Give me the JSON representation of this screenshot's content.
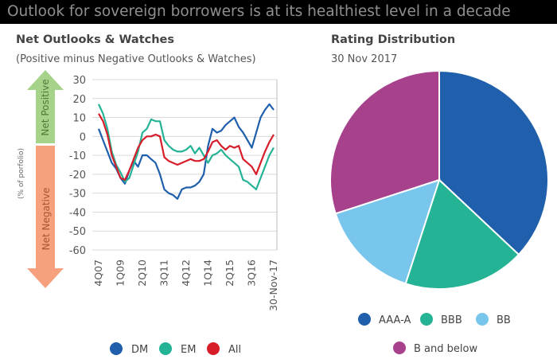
{
  "banner": "Outlook for sovereign borrowers is at its healthiest level in a decade",
  "colors": {
    "dm": "#1f5fab",
    "em": "#25b396",
    "all": "#d71c2a",
    "aaa_a": "#1f5fab",
    "bbb": "#25b396",
    "bb": "#79c6ec",
    "b_below": "#a8418c",
    "up_arrow": "#a6d38a",
    "down_arrow": "#f6a07e"
  },
  "chart_data": [
    {
      "type": "line",
      "title": "Net Outlooks & Watches",
      "subtitle": "(Positive minus Negative Outlooks & Watches)",
      "ylabel": "(% of porfolio)",
      "ylim": [
        -60,
        30
      ],
      "yticks": [
        "30",
        "20",
        "10",
        "0",
        "-10",
        "-20",
        "-30",
        "-40",
        "-50",
        "-60"
      ],
      "xlim": [
        0,
        40
      ],
      "xticks": [
        {
          "label": "4Q07",
          "x": 0
        },
        {
          "label": "1Q09",
          "x": 5
        },
        {
          "label": "2Q10",
          "x": 10
        },
        {
          "label": "3Q11",
          "x": 15
        },
        {
          "label": "4Q12",
          "x": 20
        },
        {
          "label": "1Q14",
          "x": 25
        },
        {
          "label": "2Q15",
          "x": 30
        },
        {
          "label": "3Q16",
          "x": 35
        },
        {
          "label": "30-Nov-17",
          "x": 40
        }
      ],
      "arrows": {
        "positive": "Net Positive",
        "negative": "Net Negative"
      },
      "series": [
        {
          "name": "DM",
          "color_key": "dm",
          "x": [
            0,
            1,
            2,
            3,
            4,
            5,
            6,
            7,
            8,
            9,
            10,
            11,
            12,
            13,
            14,
            15,
            16,
            17,
            18,
            19,
            20,
            21,
            22,
            23,
            24,
            25,
            26,
            27,
            28,
            29,
            30,
            31,
            32,
            33,
            34,
            35,
            36,
            37,
            38,
            39,
            40
          ],
          "values": [
            4,
            -2,
            -8,
            -14,
            -17,
            -22,
            -25,
            -18,
            -13,
            -16,
            -10,
            -10,
            -12,
            -14,
            -20,
            -28,
            -30,
            -31,
            -33,
            -28,
            -27,
            -27,
            -26,
            -24,
            -20,
            -5,
            4,
            2,
            3,
            6,
            8,
            10,
            5,
            2,
            -2,
            -6,
            2,
            10,
            14,
            17,
            14
          ]
        },
        {
          "name": "EM",
          "color_key": "em",
          "x": [
            0,
            1,
            2,
            3,
            4,
            5,
            6,
            7,
            8,
            9,
            10,
            11,
            12,
            13,
            14,
            15,
            16,
            17,
            18,
            19,
            20,
            21,
            22,
            23,
            24,
            25,
            26,
            27,
            28,
            29,
            30,
            31,
            32,
            33,
            34,
            35,
            36,
            37,
            38,
            39,
            40
          ],
          "values": [
            17,
            12,
            4,
            -8,
            -15,
            -19,
            -24,
            -22,
            -15,
            -8,
            2,
            4,
            9,
            8,
            8,
            -2,
            -5,
            -7,
            -8,
            -8,
            -7,
            -5,
            -9,
            -6,
            -10,
            -14,
            -10,
            -9,
            -7,
            -10,
            -12,
            -14,
            -16,
            -23,
            -24,
            -26,
            -28,
            -22,
            -16,
            -10,
            -6
          ]
        },
        {
          "name": "All",
          "color_key": "all",
          "x": [
            0,
            1,
            2,
            3,
            4,
            5,
            6,
            7,
            8,
            9,
            10,
            11,
            12,
            13,
            14,
            15,
            16,
            17,
            18,
            19,
            20,
            21,
            22,
            23,
            24,
            25,
            26,
            27,
            28,
            29,
            30,
            31,
            32,
            33,
            34,
            35,
            36,
            37,
            38,
            39,
            40
          ],
          "values": [
            12,
            8,
            1,
            -10,
            -16,
            -22,
            -23,
            -18,
            -12,
            -6,
            -2,
            0,
            0,
            1,
            0,
            -11,
            -13,
            -14,
            -15,
            -14,
            -13,
            -12,
            -13,
            -13,
            -12,
            -8,
            -3,
            -2,
            -5,
            -7,
            -5,
            -6,
            -5,
            -12,
            -14,
            -16,
            -20,
            -14,
            -8,
            -3,
            1
          ]
        }
      ],
      "legend": [
        "DM",
        "EM",
        "All"
      ]
    },
    {
      "type": "pie",
      "title": "Rating Distribution",
      "subtitle": "30 Nov 2017",
      "slices": [
        {
          "label": "AAA-A",
          "value": 37,
          "color_key": "aaa_a"
        },
        {
          "label": "BBB",
          "value": 18,
          "color_key": "bbb"
        },
        {
          "label": "BB",
          "value": 15,
          "color_key": "bb"
        },
        {
          "label": "B and below",
          "value": 30,
          "color_key": "b_below"
        }
      ]
    }
  ]
}
